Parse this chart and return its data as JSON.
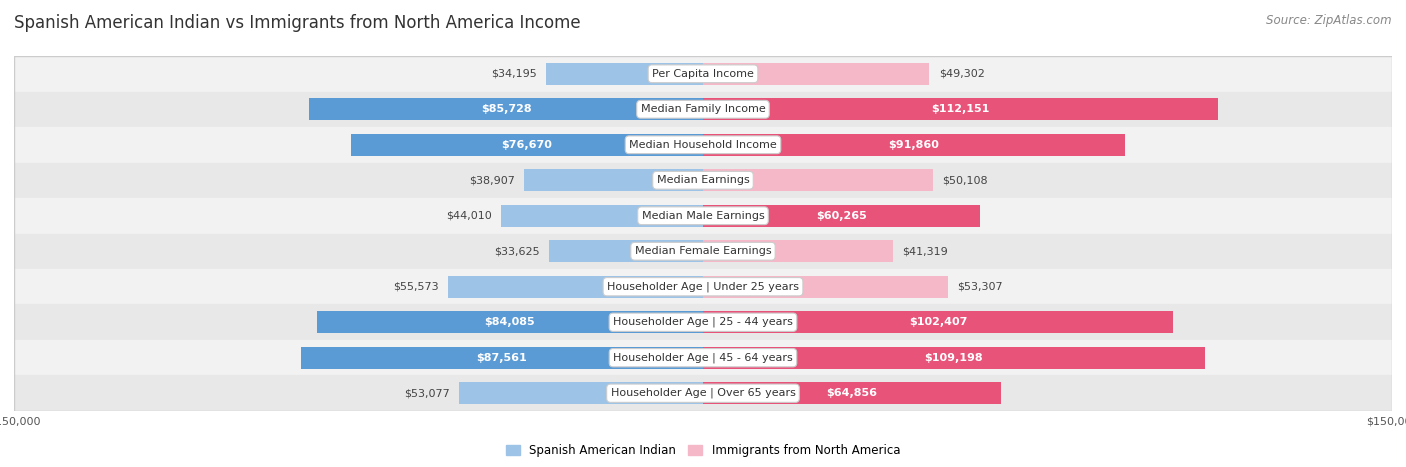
{
  "title": "Spanish American Indian vs Immigrants from North America Income",
  "source": "Source: ZipAtlas.com",
  "categories": [
    "Per Capita Income",
    "Median Family Income",
    "Median Household Income",
    "Median Earnings",
    "Median Male Earnings",
    "Median Female Earnings",
    "Householder Age | Under 25 years",
    "Householder Age | 25 - 44 years",
    "Householder Age | 45 - 64 years",
    "Householder Age | Over 65 years"
  ],
  "left_values": [
    34195,
    85728,
    76670,
    38907,
    44010,
    33625,
    55573,
    84085,
    87561,
    53077
  ],
  "right_values": [
    49302,
    112151,
    91860,
    50108,
    60265,
    41319,
    53307,
    102407,
    109198,
    64856
  ],
  "left_labels": [
    "$34,195",
    "$85,728",
    "$76,670",
    "$38,907",
    "$44,010",
    "$33,625",
    "$55,573",
    "$84,085",
    "$87,561",
    "$53,077"
  ],
  "right_labels": [
    "$49,302",
    "$112,151",
    "$91,860",
    "$50,108",
    "$60,265",
    "$41,319",
    "$53,307",
    "$102,407",
    "$109,198",
    "$64,856"
  ],
  "left_color_large": "#5b9bd5",
  "left_color_small": "#9dc3e6",
  "right_color_large": "#e8537a",
  "right_color_small": "#f4b8c8",
  "max_value": 150000,
  "legend_left": "Spanish American Indian",
  "legend_right": "Immigrants from North America",
  "background_color": "#ffffff",
  "row_bg_even": "#f2f2f2",
  "row_bg_odd": "#e8e8e8",
  "title_fontsize": 12,
  "source_fontsize": 8.5,
  "bar_fontsize": 8,
  "category_fontsize": 8,
  "axis_label_fontsize": 8,
  "large_threshold": 60000
}
